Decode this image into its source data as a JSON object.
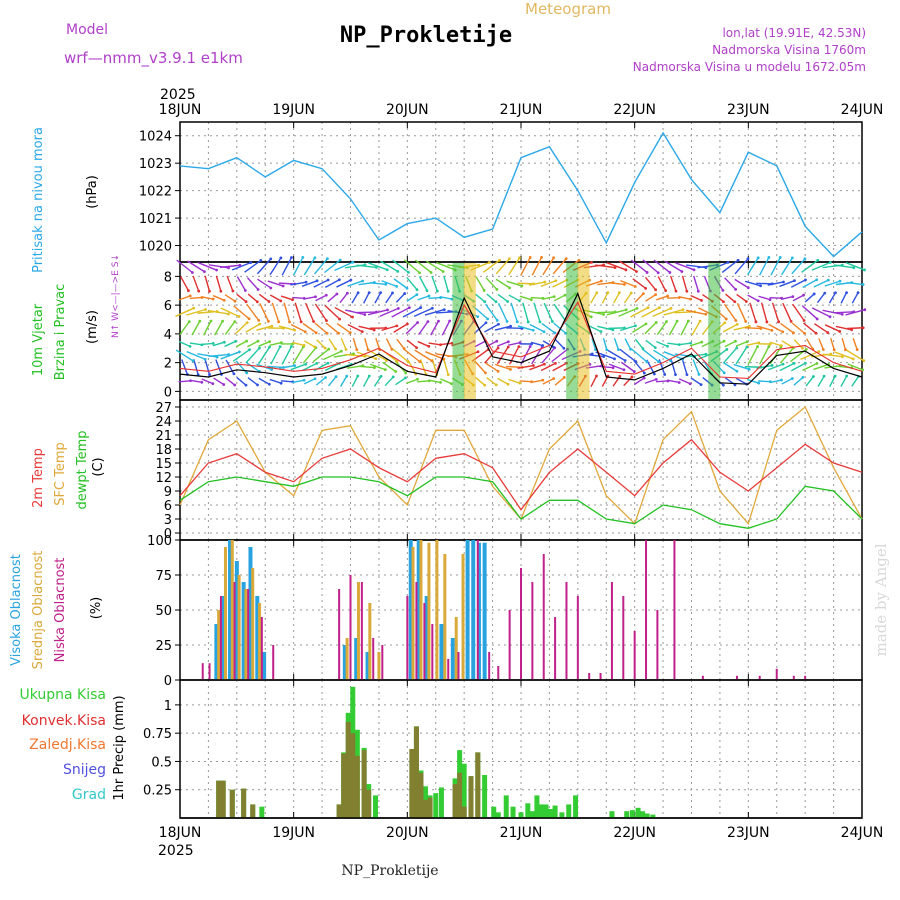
{
  "header": {
    "model_label": "Model",
    "model_name": "wrf—nmm_v3.9.1  e1km",
    "title": "NP_Prokletije",
    "product": "Meteogram",
    "lonlat": "lon,lat (19.91E, 42.53N)",
    "elevation": "Nadmorska Visina 1760m",
    "model_elevation": "Nadmorska Visina u modelu 1672.05m"
  },
  "time_axis": {
    "year": "2025",
    "ticks": [
      "18JUN",
      "19JUN",
      "20JUN",
      "21JUN",
      "22JUN",
      "23JUN",
      "24JUN"
    ]
  },
  "footer": {
    "station": "NP_Prokletije",
    "credit": "made by Angel"
  },
  "colors": {
    "pressure": "#2aa8e8",
    "wind_speed": "#000000",
    "gust": "#e83030",
    "t2m": "#e83a3a",
    "sfc_temp": "#e0a83a",
    "dewpoint": "#22c022",
    "cloud_high": "#29a3e0",
    "cloud_mid": "#d9a93a",
    "cloud_low": "#c0208a",
    "precip_total": "#33cc33",
    "precip_conv": "#e03030",
    "precip_large": "#f07830",
    "snow": "#5050e0",
    "hail": "#30c8c8"
  },
  "chart_data": [
    {
      "type": "line",
      "panel": "pressure",
      "ylabel_long": "Pritisak na nivou mora",
      "ylabel": "(hPa)",
      "yticks": [
        "1020",
        "1021",
        "1022",
        "1023",
        "1024"
      ],
      "ylim": [
        1019.4,
        1024.5
      ],
      "x_days": [
        0,
        0.25,
        0.5,
        0.75,
        1,
        1.25,
        1.5,
        1.75,
        2,
        2.25,
        2.5,
        2.75,
        3,
        3.25,
        3.5,
        3.75,
        4,
        4.25,
        4.5,
        4.75,
        5,
        5.25,
        5.5,
        5.75,
        6
      ],
      "series": [
        {
          "values": [
            1022.9,
            1022.8,
            1023.2,
            1022.5,
            1023.1,
            1022.8,
            1021.7,
            1020.2,
            1020.8,
            1021.0,
            1020.3,
            1020.6,
            1023.2,
            1023.6,
            1022.0,
            1020.1,
            1022.3,
            1024.1,
            1022.4,
            1021.2,
            1023.4,
            1022.9,
            1020.7,
            1019.6,
            1020.5
          ]
        }
      ]
    },
    {
      "type": "line",
      "panel": "wind",
      "ylabel_long": "10m Vjetar",
      "ylabel_long2": "Brzina i Pravac",
      "ylabel": "(m/s)",
      "compass": "N↑ W<—|—>E S↓",
      "yticks": [
        "0",
        "2",
        "4",
        "6",
        "8"
      ],
      "ylim": [
        -0.6,
        9.0
      ],
      "barb_rows": [
        0.7,
        1.7,
        2.5,
        3.3,
        4.4,
        5.5,
        6.5,
        7.5,
        8.7
      ],
      "x_days": [
        0,
        0.25,
        0.5,
        0.75,
        1,
        1.25,
        1.5,
        1.75,
        2,
        2.25,
        2.5,
        2.75,
        3,
        3.25,
        3.5,
        3.75,
        4,
        4.25,
        4.5,
        4.75,
        5,
        5.25,
        5.5,
        5.75,
        6
      ],
      "series": [
        {
          "name": "speed",
          "values": [
            1.2,
            1.0,
            1.5,
            1.3,
            1.0,
            1.2,
            1.8,
            2.6,
            1.4,
            1.0,
            6.5,
            2.4,
            2.0,
            2.8,
            6.8,
            1.0,
            0.8,
            1.6,
            2.6,
            0.6,
            0.5,
            2.5,
            2.8,
            1.6,
            1.0
          ]
        },
        {
          "name": "gust",
          "values": [
            1.6,
            1.4,
            1.9,
            1.7,
            1.4,
            1.6,
            2.2,
            3.0,
            1.8,
            1.3,
            6.0,
            2.8,
            2.4,
            3.2,
            6.2,
            1.4,
            1.2,
            2.0,
            3.0,
            1.0,
            0.9,
            2.9,
            3.2,
            2.0,
            1.4
          ]
        }
      ]
    },
    {
      "type": "line",
      "panel": "temperature",
      "ylabel_long": "2m Temp",
      "ylabel_long2": "SFC Temp",
      "ylabel_long3": "dewpt Temp",
      "ylabel": "(C)",
      "yticks": [
        "0",
        "3",
        "6",
        "9",
        "12",
        "15",
        "18",
        "21",
        "24",
        "27"
      ],
      "ylim": [
        -1.5,
        28.5
      ],
      "x_days": [
        0,
        0.25,
        0.5,
        0.75,
        1,
        1.25,
        1.5,
        1.75,
        2,
        2.25,
        2.5,
        2.75,
        3,
        3.25,
        3.5,
        3.75,
        4,
        4.25,
        4.5,
        4.75,
        5,
        5.25,
        5.5,
        5.75,
        6
      ],
      "series": [
        {
          "name": "2m Temp",
          "values": [
            8,
            15,
            17,
            13,
            11,
            16,
            18,
            14,
            11,
            16,
            17,
            14,
            5,
            13,
            18,
            13,
            8,
            15,
            20,
            13,
            9,
            14,
            19,
            15,
            13
          ]
        },
        {
          "name": "SFC Temp",
          "values": [
            6,
            20,
            24,
            13,
            8,
            22,
            23,
            12,
            6,
            22,
            22,
            10,
            3,
            18,
            24,
            8,
            2,
            20,
            26,
            9,
            2,
            22,
            27,
            14,
            3
          ]
        },
        {
          "name": "dewpt Temp",
          "values": [
            7,
            11,
            12,
            11,
            10,
            12,
            12,
            11,
            8,
            12,
            12,
            11,
            3,
            7,
            7,
            3,
            2,
            6,
            5,
            2,
            1,
            3,
            10,
            9,
            3
          ]
        }
      ]
    },
    {
      "type": "bar",
      "panel": "cloud",
      "ylabel_long": "Visoka Oblacnost",
      "ylabel_long2": "Srednja Oblacnost",
      "ylabel_long3": "Niska Oblacnost",
      "ylabel": "(%)",
      "yticks": [
        "0",
        "25",
        "50",
        "75",
        "100"
      ],
      "ylim": [
        0,
        100
      ],
      "series": [
        {
          "name": "Visoka Oblacnost",
          "x": [
            0.32,
            0.38,
            0.44,
            0.5,
            0.56,
            0.62,
            0.68,
            0.74,
            1.45,
            1.55,
            1.65,
            2.03,
            2.1,
            2.17,
            2.3,
            2.4,
            2.53,
            2.58,
            2.63,
            2.68
          ],
          "values": [
            40,
            60,
            100,
            85,
            70,
            95,
            60,
            20,
            25,
            30,
            20,
            100,
            100,
            60,
            40,
            30,
            100,
            100,
            98,
            98
          ]
        },
        {
          "name": "Srednja Oblacnost",
          "x": [
            0.34,
            0.4,
            0.46,
            0.52,
            0.58,
            0.64,
            0.7,
            1.47,
            1.57,
            1.67,
            1.75,
            2.05,
            2.12,
            2.19,
            2.26,
            2.33,
            2.43,
            2.49
          ],
          "values": [
            50,
            95,
            100,
            75,
            65,
            80,
            55,
            30,
            70,
            55,
            20,
            95,
            100,
            98,
            100,
            90,
            45,
            90
          ]
        },
        {
          "name": "Niska Oblacnost",
          "x": [
            0.2,
            0.26,
            0.36,
            0.48,
            0.6,
            0.72,
            0.82,
            1.4,
            1.5,
            1.6,
            1.7,
            1.78,
            2.0,
            2.08,
            2.15,
            2.22,
            2.36,
            2.45,
            2.62,
            2.72,
            2.8,
            2.9,
            3.0,
            3.1,
            3.2,
            3.3,
            3.4,
            3.5,
            3.6,
            3.7,
            3.8,
            3.9,
            4.0,
            4.1,
            4.2,
            4.35,
            4.6,
            4.9,
            5.1,
            5.25,
            5.4,
            5.5
          ],
          "values": [
            12,
            12,
            60,
            70,
            65,
            45,
            25,
            65,
            75,
            70,
            30,
            25,
            60,
            70,
            55,
            40,
            15,
            20,
            100,
            20,
            10,
            50,
            80,
            70,
            90,
            45,
            70,
            60,
            5,
            5,
            70,
            60,
            35,
            100,
            50,
            100,
            3,
            3,
            3,
            8,
            3,
            3
          ]
        }
      ]
    },
    {
      "type": "bar",
      "panel": "precip",
      "ylabel": "1hr Precip (mm)",
      "legend": [
        "Ukupna Kisa",
        "Konvek.Kisa",
        "Zaledj.Kisa",
        "Snijeg",
        "Grad"
      ],
      "yticks": [
        "0.25",
        "0.5",
        "0.75",
        "1"
      ],
      "ylim": [
        0,
        1.22
      ],
      "series": [
        {
          "name": "Ukupna Kisa",
          "x": [
            0.34,
            0.38,
            0.46,
            0.56,
            0.64,
            0.72,
            1.4,
            1.44,
            1.48,
            1.52,
            1.56,
            1.62,
            1.66,
            1.72,
            2.04,
            2.08,
            2.12,
            2.16,
            2.2,
            2.25,
            2.3,
            2.42,
            2.46,
            2.5,
            2.56,
            2.62,
            2.68,
            2.76,
            2.8,
            2.87,
            2.93,
            3.0,
            3.06,
            3.1,
            3.14,
            3.18,
            3.22,
            3.26,
            3.3,
            3.36,
            3.42,
            3.48,
            3.8,
            3.93,
            3.98,
            4.03,
            4.07,
            4.11,
            4.16
          ],
          "values": [
            0.33,
            0.33,
            0.25,
            0.26,
            0.12,
            0.1,
            0.12,
            0.58,
            0.93,
            1.16,
            0.78,
            0.62,
            0.3,
            0.2,
            0.61,
            0.81,
            0.42,
            0.28,
            0.2,
            0.22,
            0.27,
            0.35,
            0.6,
            0.48,
            0.37,
            0.58,
            0.38,
            0.1,
            0.05,
            0.2,
            0.1,
            0.05,
            0.13,
            0.06,
            0.2,
            0.12,
            0.12,
            0.08,
            0.11,
            0.05,
            0.12,
            0.2,
            0.06,
            0.06,
            0.07,
            0.09,
            0.06,
            0.04,
            0.03
          ]
        },
        {
          "name": "Zaledj.Kisa",
          "x": [
            0.34,
            0.38,
            0.46,
            0.56,
            0.64,
            1.4,
            1.44,
            1.48,
            1.52,
            1.56,
            1.62,
            1.66,
            2.04,
            2.08,
            2.12,
            2.16,
            2.2,
            2.42,
            2.46,
            2.5,
            2.56,
            2.62
          ],
          "values": [
            0.33,
            0.33,
            0.25,
            0.26,
            0.12,
            0.12,
            0.57,
            0.85,
            0.75,
            0.55,
            0.6,
            0.25,
            0.61,
            0.81,
            0.4,
            0.16,
            0.18,
            0.3,
            0.4,
            0.1,
            0.37,
            0.58
          ]
        }
      ]
    }
  ]
}
